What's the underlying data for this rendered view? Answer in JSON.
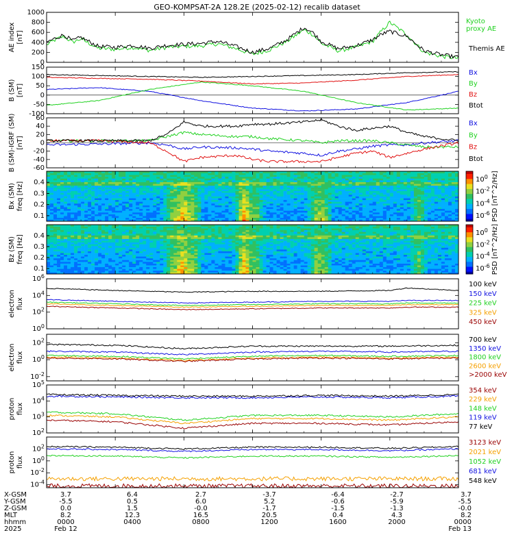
{
  "title": "GEO-KOMPSAT-2A 128.2E (2025-02-12) recalib dataset",
  "colors": {
    "black": "#000000",
    "green": "#1fd11f",
    "blue": "#1010e0",
    "red": "#e01010",
    "orange": "#f5a000",
    "darkred": "#990000",
    "cyan": "#00a8ff"
  },
  "chart_data": [
    {
      "type": "line",
      "id": "ae",
      "ylabel": "AE index [nT]",
      "yticks": [
        "1000",
        "800",
        "600",
        "400",
        "200",
        "0"
      ],
      "ylim": [
        0,
        1000
      ],
      "series": [
        {
          "name": "Kyoto proxy AE",
          "color": "green",
          "t": [
            0,
            0.5,
            1,
            1.5,
            2,
            3,
            4,
            5,
            6,
            7,
            8,
            9,
            10,
            11,
            12,
            13,
            14,
            15,
            15.5,
            16,
            17,
            18,
            19,
            19.5,
            20,
            21,
            22,
            23,
            24
          ],
          "values": [
            350,
            450,
            520,
            400,
            470,
            280,
            260,
            300,
            240,
            300,
            320,
            330,
            370,
            280,
            160,
            250,
            420,
            650,
            560,
            380,
            230,
            300,
            420,
            620,
            800,
            550,
            200,
            120,
            80
          ]
        },
        {
          "name": "Themis AE",
          "color": "black",
          "t": [
            0,
            0.5,
            1,
            1.5,
            2,
            3,
            4,
            5,
            6,
            7,
            8,
            9,
            10,
            11,
            12,
            13,
            14,
            15,
            15.5,
            16,
            17,
            18,
            19,
            19.5,
            20,
            21,
            22,
            23,
            24
          ],
          "values": [
            400,
            480,
            550,
            430,
            500,
            320,
            300,
            340,
            280,
            340,
            360,
            380,
            420,
            320,
            200,
            280,
            450,
            700,
            600,
            420,
            270,
            330,
            450,
            560,
            620,
            520,
            230,
            150,
            100
          ]
        }
      ]
    },
    {
      "type": "line",
      "id": "bsm",
      "ylabel": "B (SM) [nT]",
      "yticks": [
        "150",
        "100",
        "50",
        "0",
        "-50",
        "-100"
      ],
      "ylim": [
        -100,
        150
      ],
      "series": [
        {
          "name": "Bx",
          "color": "blue",
          "t": [
            0,
            3,
            6,
            9,
            12,
            15,
            18,
            21,
            24
          ],
          "values": [
            30,
            40,
            20,
            -30,
            -70,
            -85,
            -75,
            -40,
            20
          ]
        },
        {
          "name": "By",
          "color": "green",
          "t": [
            0,
            3,
            6,
            9,
            12,
            15,
            18,
            21,
            24
          ],
          "values": [
            -55,
            -30,
            30,
            70,
            50,
            20,
            -40,
            -80,
            -70
          ]
        },
        {
          "name": "Bz",
          "color": "red",
          "t": [
            0,
            3,
            6,
            9,
            12,
            15,
            18,
            21,
            24
          ],
          "values": [
            95,
            90,
            85,
            75,
            60,
            65,
            80,
            100,
            110
          ]
        },
        {
          "name": "Btot",
          "color": "black",
          "t": [
            0,
            3,
            6,
            9,
            12,
            15,
            18,
            21,
            24
          ],
          "values": [
            110,
            105,
            100,
            95,
            100,
            105,
            110,
            120,
            125
          ]
        }
      ]
    },
    {
      "type": "line",
      "id": "dbsm",
      "ylabel": "B (SM)-IGRF (SM) [nT]",
      "yticks": [
        "60",
        "40",
        "20",
        "0",
        "-20",
        "-40",
        "-60"
      ],
      "ylim": [
        -60,
        60
      ],
      "series": [
        {
          "name": "Bx",
          "color": "blue",
          "t": [
            0,
            3,
            6,
            7,
            8,
            9,
            11,
            12,
            13,
            15,
            16,
            17,
            18,
            19,
            20,
            21,
            22,
            24
          ],
          "values": [
            -5,
            -3,
            0,
            -5,
            -15,
            -10,
            -12,
            -15,
            -20,
            -25,
            -30,
            -20,
            -15,
            -8,
            -5,
            -5,
            0,
            5
          ]
        },
        {
          "name": "By",
          "color": "green",
          "t": [
            0,
            3,
            6,
            7,
            8,
            9,
            11,
            12,
            13,
            15,
            16,
            17,
            18,
            19,
            20,
            21,
            22,
            24
          ],
          "values": [
            5,
            5,
            5,
            15,
            25,
            20,
            15,
            15,
            10,
            5,
            0,
            5,
            5,
            5,
            0,
            -5,
            -10,
            -10
          ]
        },
        {
          "name": "Bz",
          "color": "red",
          "t": [
            0,
            3,
            6,
            7,
            8,
            9,
            11,
            12,
            13,
            15,
            16,
            17,
            18,
            19,
            20,
            21,
            22,
            24
          ],
          "values": [
            5,
            5,
            0,
            -20,
            -45,
            -35,
            -30,
            -40,
            -45,
            -45,
            -45,
            -35,
            -25,
            -20,
            -35,
            -25,
            -15,
            0
          ]
        },
        {
          "name": "Btot",
          "color": "black",
          "t": [
            0,
            3,
            6,
            7,
            8,
            9,
            11,
            12,
            13,
            15,
            16,
            17,
            18,
            19,
            20,
            21,
            22,
            24
          ],
          "values": [
            5,
            5,
            5,
            20,
            50,
            40,
            40,
            45,
            45,
            50,
            55,
            40,
            30,
            35,
            40,
            25,
            15,
            5
          ]
        }
      ]
    },
    {
      "type": "heatmap",
      "id": "bxspec",
      "ylabel": "Bx (SM) freq [Hz]",
      "yticks": [
        "0.4",
        "0.3",
        "0.2",
        "0.1"
      ],
      "ylim": [
        0.05,
        0.5
      ],
      "colorbar_label": "PSD [nT^2/Hz]",
      "colorbar_ticks": [
        "10^0",
        "10^-2",
        "10^-4",
        "10^-6"
      ]
    },
    {
      "type": "heatmap",
      "id": "bzspec",
      "ylabel": "Bz (SM) freq [Hz]",
      "yticks": [
        "0.4",
        "0.3",
        "0.2",
        "0.1"
      ],
      "ylim": [
        0.05,
        0.5
      ],
      "colorbar_label": "PSD [nT^2/Hz]",
      "colorbar_ticks": [
        "10^0",
        "10^-2",
        "10^-4",
        "10^-6"
      ]
    },
    {
      "type": "line",
      "id": "elec1",
      "log": true,
      "ylabel": "electron flux",
      "yticks": [
        "10^6",
        "10^4",
        "10^2",
        "10^0"
      ],
      "ylim": [
        0,
        6
      ],
      "series": [
        {
          "name": "100 keV",
          "color": "black",
          "t": [
            0,
            4,
            8,
            12,
            16,
            20,
            21,
            24
          ],
          "values": [
            4.85,
            4.6,
            4.4,
            4.5,
            4.5,
            4.6,
            4.9,
            4.6
          ]
        },
        {
          "name": "150 keV",
          "color": "blue",
          "t": [
            0,
            4,
            8,
            12,
            16,
            20,
            21,
            24
          ],
          "values": [
            3.5,
            3.3,
            3.1,
            3.2,
            3.3,
            3.3,
            3.4,
            3.4
          ]
        },
        {
          "name": "225 keV",
          "color": "green",
          "t": [
            0,
            4,
            8,
            12,
            16,
            20,
            21,
            24
          ],
          "values": [
            3.2,
            3.0,
            2.8,
            2.9,
            3.0,
            3.0,
            3.1,
            3.1
          ]
        },
        {
          "name": "325 keV",
          "color": "orange",
          "t": [
            0,
            4,
            8,
            12,
            16,
            20,
            21,
            24
          ],
          "values": [
            3.0,
            2.8,
            2.6,
            2.7,
            2.8,
            2.8,
            2.9,
            2.9
          ]
        },
        {
          "name": "450 keV",
          "color": "darkred",
          "t": [
            0,
            4,
            8,
            12,
            16,
            20,
            21,
            24
          ],
          "values": [
            2.7,
            2.5,
            2.3,
            2.4,
            2.5,
            2.5,
            2.6,
            2.6
          ]
        }
      ]
    },
    {
      "type": "line",
      "id": "elec2",
      "log": true,
      "ylabel": "electron flux",
      "yticks": [
        "10^2",
        "10^0",
        "10^-2"
      ],
      "ylim": [
        -2.5,
        3
      ],
      "series": [
        {
          "name": "700 keV",
          "color": "black",
          "t": [
            0,
            4,
            8,
            12,
            16,
            20,
            24
          ],
          "values": [
            1.8,
            1.7,
            1.3,
            1.6,
            1.6,
            1.6,
            1.7
          ]
        },
        {
          "name": "1350 keV",
          "color": "blue",
          "t": [
            0,
            4,
            8,
            12,
            16,
            20,
            24
          ],
          "values": [
            1.0,
            0.9,
            0.6,
            0.9,
            1.0,
            0.9,
            1.0
          ]
        },
        {
          "name": "1800 keV",
          "color": "green",
          "t": [
            0,
            4,
            8,
            12,
            16,
            20,
            24
          ],
          "values": [
            0.5,
            0.4,
            0.1,
            0.4,
            0.5,
            0.4,
            0.5
          ]
        },
        {
          "name": "2600 keV",
          "color": "orange",
          "t": [
            0,
            4,
            8,
            12,
            16,
            20,
            24
          ],
          "values": [
            0.3,
            0.2,
            -0.1,
            0.2,
            0.3,
            0.2,
            0.3
          ]
        },
        {
          "name": ">2000 keV",
          "color": "darkred",
          "t": [
            0,
            4,
            8,
            12,
            16,
            20,
            24
          ],
          "values": [
            0.2,
            0.1,
            -0.2,
            0.1,
            0.2,
            0.1,
            0.2
          ]
        }
      ]
    },
    {
      "type": "line",
      "id": "prot1",
      "log": true,
      "ylabel": "proton flux",
      "yticks": [
        "10^5",
        "10^4",
        "10^3",
        "10^2"
      ],
      "ylim": [
        2,
        5
      ],
      "series": [
        {
          "name": "354 keV",
          "color": "darkred",
          "t": [
            0,
            4,
            8,
            12,
            16,
            20,
            24
          ],
          "values": [
            2.8,
            2.7,
            2.3,
            2.6,
            2.6,
            2.5,
            2.7
          ]
        },
        {
          "name": "229 keV",
          "color": "orange",
          "t": [
            0,
            4,
            8,
            12,
            16,
            20,
            24
          ],
          "values": [
            3.1,
            3.0,
            2.6,
            2.9,
            2.9,
            2.8,
            3.0
          ]
        },
        {
          "name": "148 keV",
          "color": "green",
          "t": [
            0,
            4,
            8,
            12,
            16,
            20,
            24
          ],
          "values": [
            3.3,
            3.2,
            2.8,
            3.1,
            3.1,
            3.0,
            3.2
          ]
        },
        {
          "name": "119 keV",
          "color": "blue",
          "t": [
            0,
            4,
            8,
            12,
            16,
            20,
            24
          ],
          "values": [
            4.3,
            4.25,
            4.2,
            4.2,
            4.25,
            4.2,
            4.3
          ]
        },
        {
          "name": "77 keV",
          "color": "black",
          "t": [
            0,
            4,
            8,
            12,
            16,
            20,
            24
          ],
          "values": [
            4.4,
            4.35,
            4.3,
            4.3,
            4.35,
            4.3,
            4.4
          ]
        }
      ]
    },
    {
      "type": "line",
      "id": "prot2",
      "log": true,
      "ylabel": "proton flux",
      "yticks": [
        "10^2",
        "10^0",
        "10^-2",
        "10^-4"
      ],
      "ylim": [
        -4.5,
        4
      ],
      "series": [
        {
          "name": "3123 keV",
          "color": "darkred",
          "t": [
            0,
            12,
            24
          ],
          "values": [
            -4.2,
            -4.2,
            -4.2
          ]
        },
        {
          "name": "2021 keV",
          "color": "orange",
          "t": [
            0,
            12,
            24
          ],
          "values": [
            -3.0,
            -3.0,
            -3.0
          ]
        },
        {
          "name": "1052 keV",
          "color": "green",
          "t": [
            0,
            4,
            8,
            12,
            16,
            20,
            24
          ],
          "values": [
            0.9,
            0.8,
            0.5,
            0.8,
            0.8,
            0.6,
            0.9
          ]
        },
        {
          "name": "681 keV",
          "color": "blue",
          "t": [
            0,
            4,
            8,
            12,
            16,
            20,
            24
          ],
          "values": [
            2.0,
            1.9,
            1.6,
            1.9,
            1.9,
            1.7,
            2.0
          ]
        },
        {
          "name": "548 keV",
          "color": "black",
          "t": [
            0,
            4,
            8,
            12,
            16,
            20,
            24
          ],
          "values": [
            2.4,
            2.3,
            2.0,
            2.3,
            2.3,
            2.1,
            2.4
          ]
        }
      ]
    }
  ],
  "ephemeris": {
    "row_labels": [
      "X-GSM",
      "Y-GSM",
      "Z-GSM",
      "MLT",
      "hhmm",
      "2025"
    ],
    "columns": [
      [
        "3.7",
        "-5.5",
        "0.0",
        "8.2",
        "0000",
        "Feb 12"
      ],
      [
        "6.4",
        "0.5",
        "1.5",
        "12.3",
        "0400",
        ""
      ],
      [
        "2.7",
        "6.0",
        "-0.0",
        "16.5",
        "0800",
        ""
      ],
      [
        "-3.7",
        "5.2",
        "-1.7",
        "20.5",
        "1200",
        ""
      ],
      [
        "-6.4",
        "-0.6",
        "-1.5",
        "0.4",
        "1600",
        ""
      ],
      [
        "-2.7",
        "-5.9",
        "-1.3",
        "4.3",
        "2000",
        ""
      ],
      [
        "3.7",
        "-5.5",
        "-0.0",
        "8.2",
        "0000",
        "Feb 13"
      ]
    ]
  }
}
